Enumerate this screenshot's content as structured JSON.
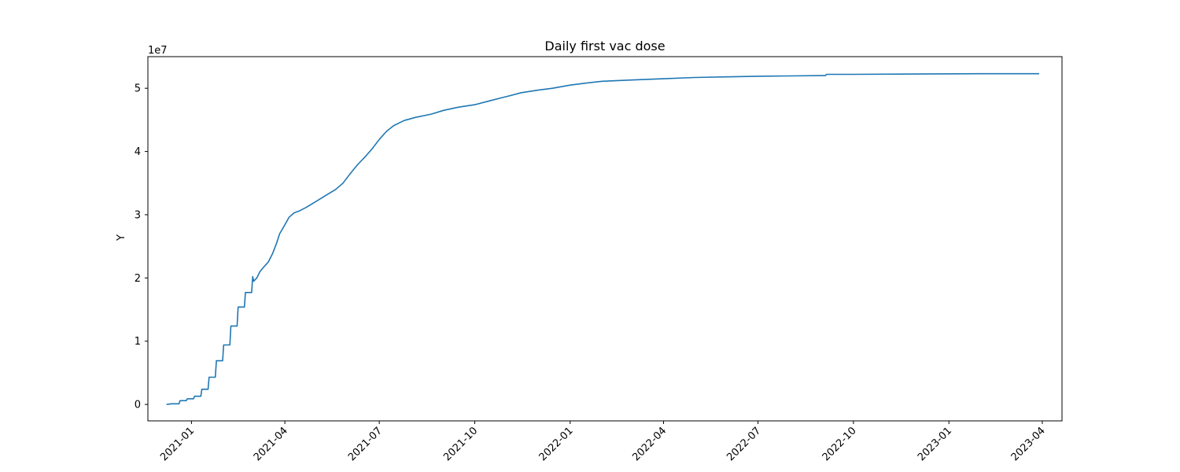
{
  "chart_data": {
    "type": "line",
    "title": "Daily first vac dose",
    "xlabel": "",
    "ylabel": "Y",
    "y_offset_text": "1e7",
    "y_ticks": [
      0,
      10000000,
      20000000,
      30000000,
      40000000,
      50000000
    ],
    "y_tick_labels": [
      "0",
      "1",
      "2",
      "3",
      "4",
      "5"
    ],
    "ylim": [
      -2600000,
      55000000
    ],
    "x_ticks": [
      "2021-01-01",
      "2021-04-01",
      "2021-07-01",
      "2021-10-01",
      "2022-01-01",
      "2022-04-01",
      "2022-07-01",
      "2022-10-01",
      "2023-01-01",
      "2023-04-01"
    ],
    "x_tick_labels": [
      "2021-01",
      "2021-04",
      "2021-07",
      "2021-10",
      "2022-01",
      "2022-04",
      "2022-07",
      "2022-10",
      "2023-01",
      "2023-04"
    ],
    "xlim": [
      "2020-11-20",
      "2023-04-20"
    ],
    "grid": false,
    "color": "#1f77b4",
    "series": [
      {
        "points": [
          [
            "2020-12-08",
            0
          ],
          [
            "2020-12-13",
            100000
          ],
          [
            "2020-12-14",
            100000
          ],
          [
            "2020-12-20",
            100000
          ],
          [
            "2020-12-21",
            600000
          ],
          [
            "2020-12-27",
            600000
          ],
          [
            "2020-12-28",
            900000
          ],
          [
            "2021-01-03",
            900000
          ],
          [
            "2021-01-04",
            1300000
          ],
          [
            "2021-01-10",
            1300000
          ],
          [
            "2021-01-11",
            2400000
          ],
          [
            "2021-01-17",
            2400000
          ],
          [
            "2021-01-18",
            4300000
          ],
          [
            "2021-01-24",
            4300000
          ],
          [
            "2021-01-25",
            6900000
          ],
          [
            "2021-01-31",
            6900000
          ],
          [
            "2021-02-01",
            9400000
          ],
          [
            "2021-02-07",
            9400000
          ],
          [
            "2021-02-08",
            12400000
          ],
          [
            "2021-02-14",
            12400000
          ],
          [
            "2021-02-15",
            15400000
          ],
          [
            "2021-02-21",
            15400000
          ],
          [
            "2021-02-22",
            17700000
          ],
          [
            "2021-02-28",
            17700000
          ],
          [
            "2021-03-01",
            20200000
          ],
          [
            "2021-03-02",
            19500000
          ],
          [
            "2021-03-05",
            20000000
          ],
          [
            "2021-03-08",
            21000000
          ],
          [
            "2021-03-12",
            21800000
          ],
          [
            "2021-03-16",
            22500000
          ],
          [
            "2021-03-20",
            23800000
          ],
          [
            "2021-03-24",
            25500000
          ],
          [
            "2021-03-27",
            27000000
          ],
          [
            "2021-04-01",
            28400000
          ],
          [
            "2021-04-05",
            29600000
          ],
          [
            "2021-04-10",
            30300000
          ],
          [
            "2021-04-15",
            30600000
          ],
          [
            "2021-04-22",
            31200000
          ],
          [
            "2021-05-01",
            32100000
          ],
          [
            "2021-05-10",
            33000000
          ],
          [
            "2021-05-20",
            34000000
          ],
          [
            "2021-05-27",
            35000000
          ],
          [
            "2021-06-03",
            36500000
          ],
          [
            "2021-06-10",
            37900000
          ],
          [
            "2021-06-17",
            39100000
          ],
          [
            "2021-06-24",
            40400000
          ],
          [
            "2021-07-01",
            41900000
          ],
          [
            "2021-07-08",
            43200000
          ],
          [
            "2021-07-15",
            44100000
          ],
          [
            "2021-07-25",
            44900000
          ],
          [
            "2021-08-05",
            45400000
          ],
          [
            "2021-08-20",
            45900000
          ],
          [
            "2021-09-01",
            46500000
          ],
          [
            "2021-09-15",
            47000000
          ],
          [
            "2021-10-01",
            47400000
          ],
          [
            "2021-10-15",
            48000000
          ],
          [
            "2021-11-01",
            48700000
          ],
          [
            "2021-11-15",
            49300000
          ],
          [
            "2021-12-01",
            49700000
          ],
          [
            "2021-12-15",
            50000000
          ],
          [
            "2022-01-01",
            50500000
          ],
          [
            "2022-01-15",
            50800000
          ],
          [
            "2022-02-01",
            51100000
          ],
          [
            "2022-03-01",
            51300000
          ],
          [
            "2022-04-01",
            51500000
          ],
          [
            "2022-05-01",
            51700000
          ],
          [
            "2022-06-01",
            51800000
          ],
          [
            "2022-07-01",
            51900000
          ],
          [
            "2022-08-01",
            51950000
          ],
          [
            "2022-09-01",
            52000000
          ],
          [
            "2022-09-04",
            52000000
          ],
          [
            "2022-09-05",
            52200000
          ],
          [
            "2022-10-01",
            52200000
          ],
          [
            "2022-12-01",
            52250000
          ],
          [
            "2023-02-01",
            52300000
          ],
          [
            "2023-03-29",
            52300000
          ]
        ]
      }
    ]
  }
}
